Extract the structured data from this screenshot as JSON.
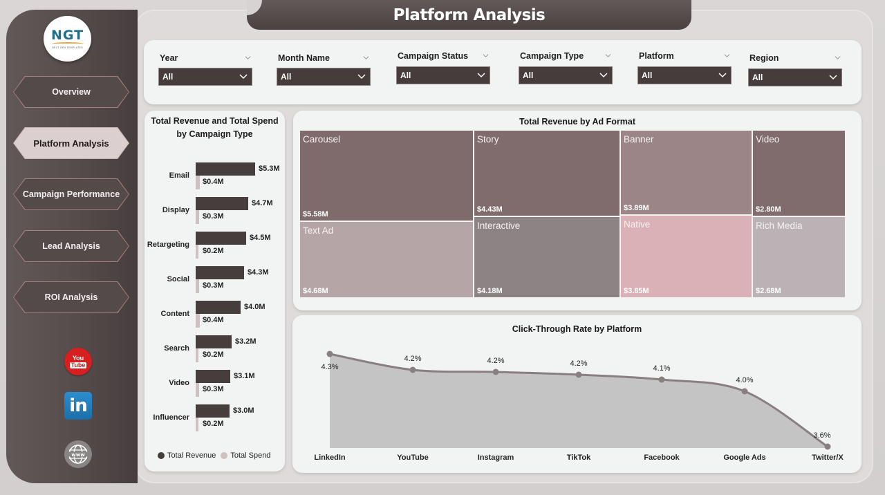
{
  "page": {
    "title": "Platform Analysis"
  },
  "sidebar": {
    "logo": {
      "text": "NGT",
      "subtitle": "NEXT GEN TEMPLATES"
    },
    "nav": [
      {
        "label": "Overview",
        "active": false
      },
      {
        "label": "Platform Analysis",
        "active": true
      },
      {
        "label": "Campaign Performance",
        "active": false
      },
      {
        "label": "Lead Analysis",
        "active": false
      },
      {
        "label": "ROI Analysis",
        "active": false
      }
    ],
    "social": [
      {
        "name": "youtube-icon",
        "top": "You",
        "bottom": "Tube"
      },
      {
        "name": "linkedin-icon",
        "text": "in"
      },
      {
        "name": "website-icon",
        "text": "www"
      }
    ]
  },
  "filters": [
    {
      "label": "Year",
      "value": "All"
    },
    {
      "label": "Month Name",
      "value": "All"
    },
    {
      "label": "Campaign Status",
      "value": "All"
    },
    {
      "label": "Campaign Type",
      "value": "All"
    },
    {
      "label": "Platform",
      "value": "All"
    },
    {
      "label": "Region",
      "value": "All"
    }
  ],
  "chart_data": [
    {
      "type": "bar",
      "orientation": "horizontal",
      "title": "Total Revenue and Total Spend by Campaign Type",
      "categories": [
        "Email",
        "Display",
        "Retargeting",
        "Social",
        "Content",
        "Search",
        "Video",
        "Influencer"
      ],
      "series": [
        {
          "name": "Total Revenue",
          "color": "#463d3d",
          "values": [
            5.3,
            4.7,
            4.5,
            4.3,
            4.0,
            3.2,
            3.1,
            3.0
          ],
          "labels": [
            "$5.3M",
            "$4.7M",
            "$4.5M",
            "$4.3M",
            "$4.0M",
            "$3.2M",
            "$3.1M",
            "$3.0M"
          ]
        },
        {
          "name": "Total Spend",
          "color": "#cfc1c1",
          "values": [
            0.4,
            0.3,
            0.2,
            0.3,
            0.4,
            0.2,
            0.3,
            0.2
          ],
          "labels": [
            "$0.4M",
            "$0.3M",
            "$0.2M",
            "$0.3M",
            "$0.4M",
            "$0.2M",
            "$0.3M",
            "$0.2M"
          ]
        }
      ],
      "unit": "$M",
      "legend_position": "bottom",
      "grid": false
    },
    {
      "type": "treemap",
      "title": "Total Revenue by Ad Format",
      "categories": [
        "Carousel",
        "Text Ad",
        "Story",
        "Interactive",
        "Banner",
        "Native",
        "Video",
        "Rich Media"
      ],
      "values": [
        5.58,
        4.68,
        4.43,
        4.18,
        3.89,
        3.85,
        2.8,
        2.68
      ],
      "labels": [
        "$5.58M",
        "$4.68M",
        "$4.43M",
        "$4.18M",
        "$3.89M",
        "$3.85M",
        "$2.80M",
        "$2.68M"
      ],
      "colors": [
        "#806b6c",
        "#b5a5a6",
        "#816c6d",
        "#8b8384",
        "#9b8587",
        "#d9b1b6",
        "#816c6d",
        "#bab2b4"
      ],
      "unit": "$M"
    },
    {
      "type": "area",
      "title": "Click-Through Rate by Platform",
      "categories": [
        "LinkedIn",
        "YouTube",
        "Instagram",
        "TikTok",
        "Facebook",
        "Google Ads",
        "Twitter/X"
      ],
      "values": [
        4.3,
        4.2,
        4.2,
        4.2,
        4.1,
        4.0,
        3.6
      ],
      "labels": [
        "4.3%",
        "4.2%",
        "4.2%",
        "4.2%",
        "4.1%",
        "4.0%",
        "3.6%"
      ],
      "xlabel": "",
      "ylabel": "",
      "line_color": "#8a7f80",
      "fill_color": "#c4c4c4",
      "grid": false
    }
  ]
}
